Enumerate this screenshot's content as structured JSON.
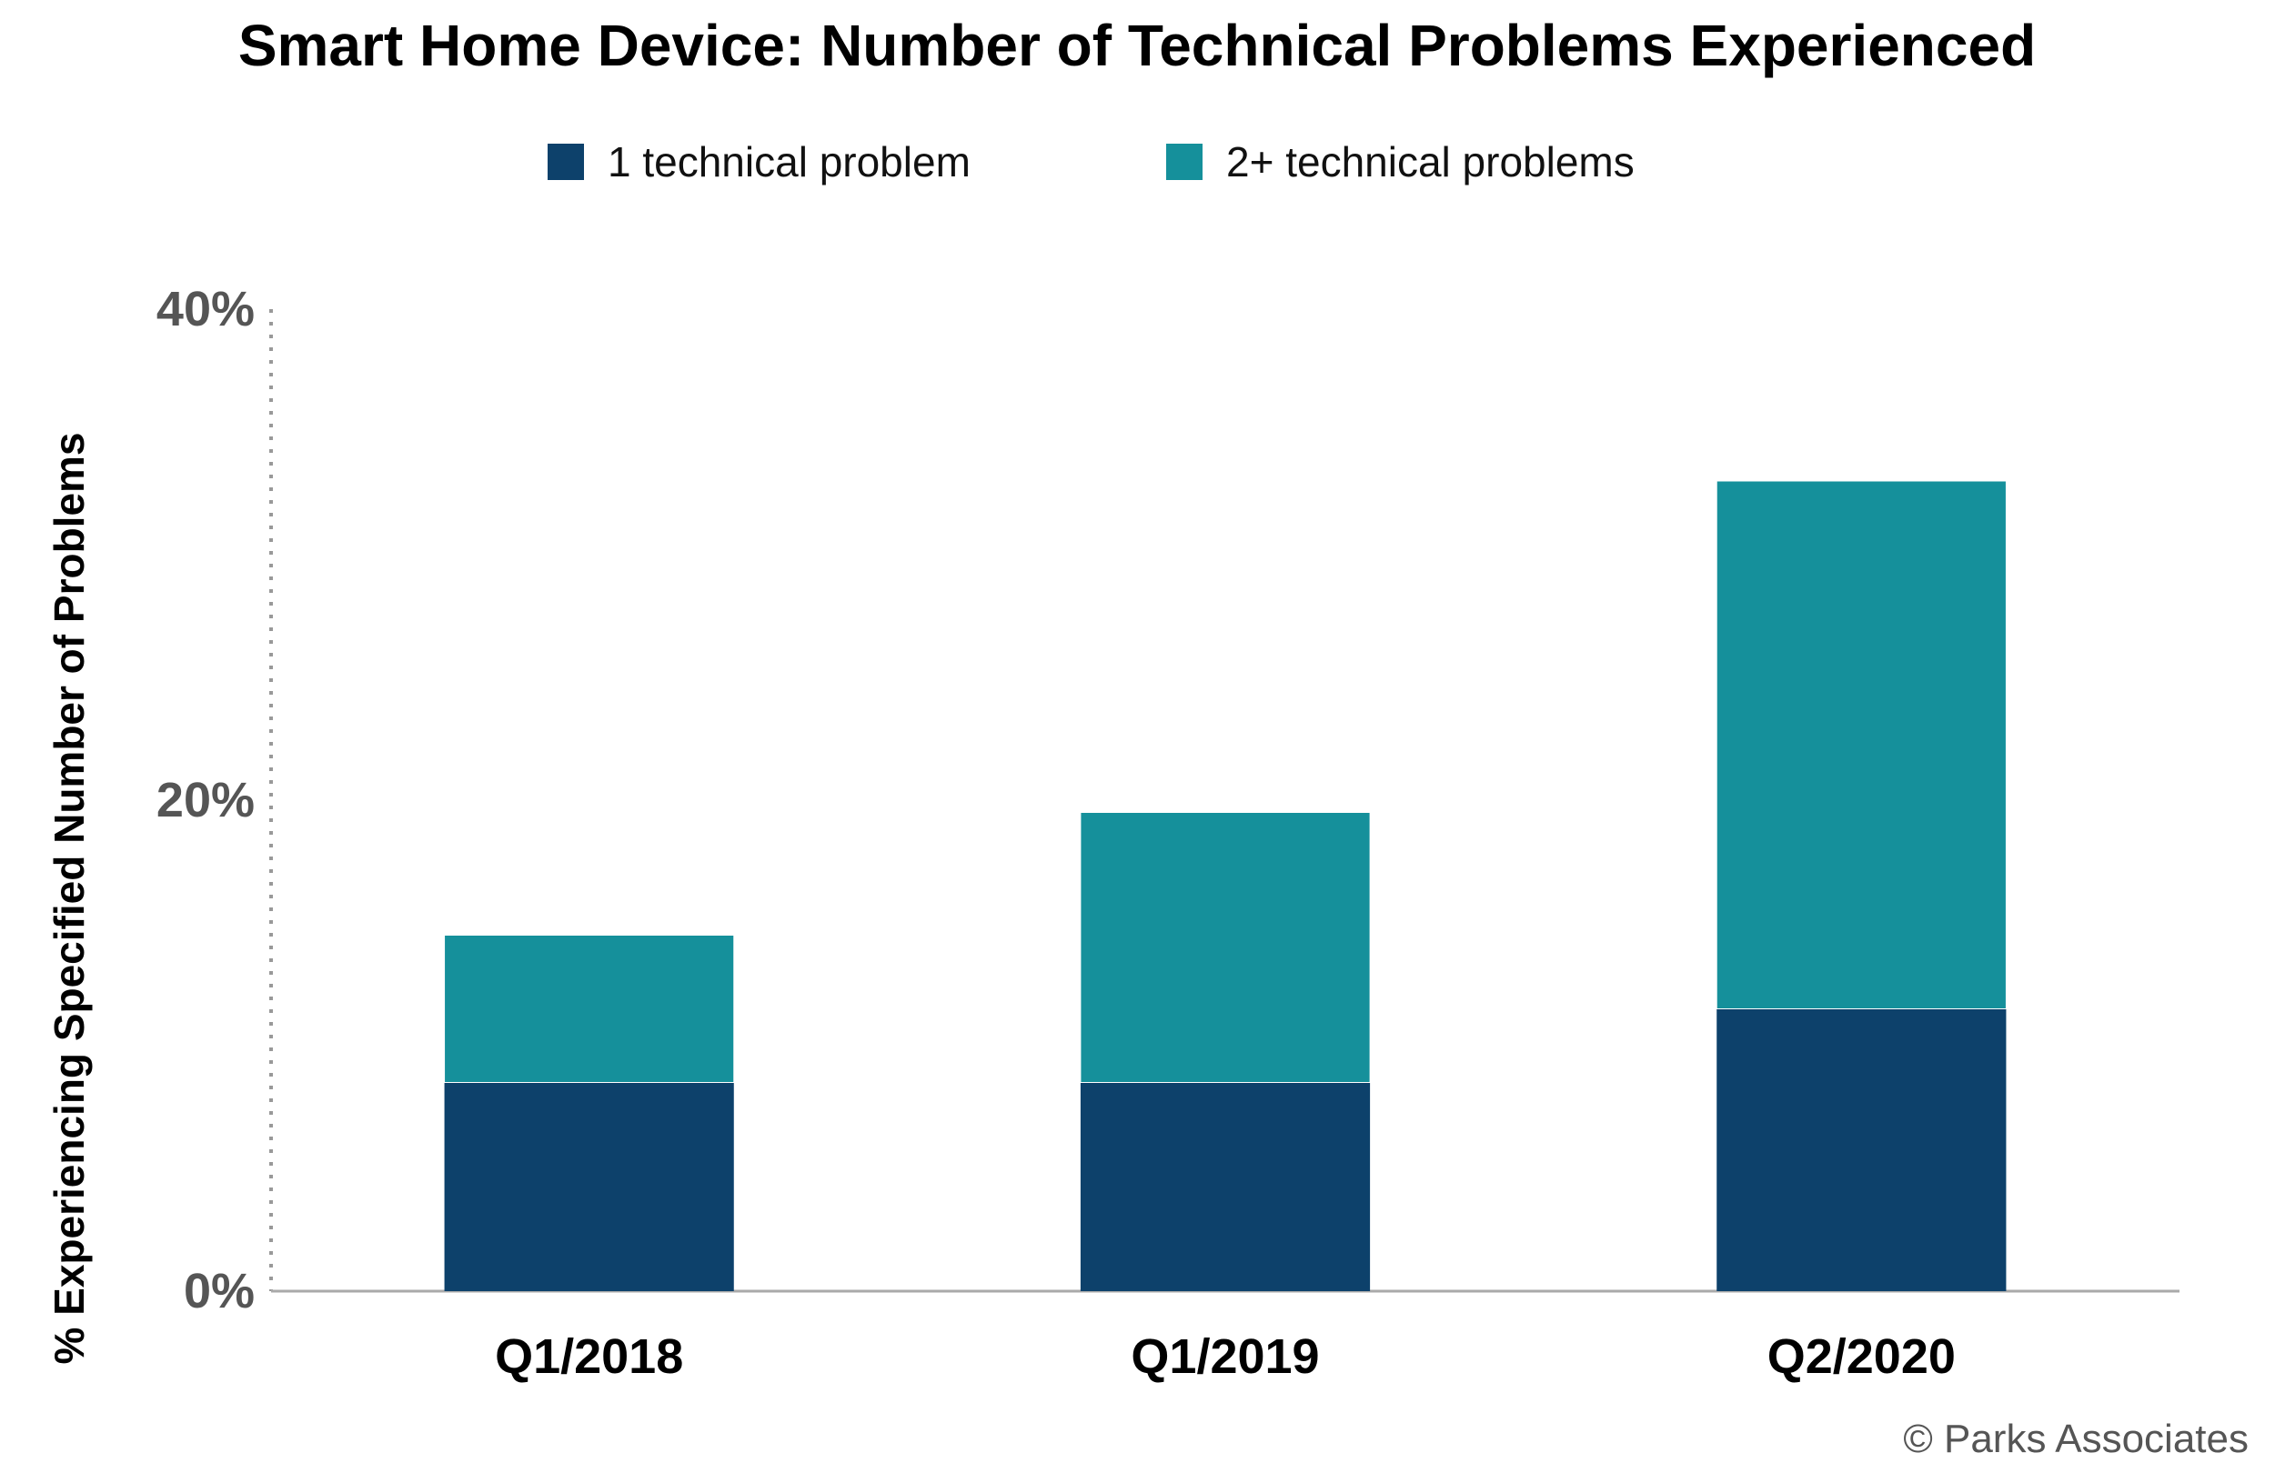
{
  "chart_data": {
    "type": "bar",
    "stacked": true,
    "title": "Smart Home Device: Number of Technical Problems Experienced",
    "xlabel": "",
    "ylabel": "% Experiencing Specified Number of Problems",
    "categories": [
      "Q1/2018",
      "Q1/2019",
      "Q2/2020"
    ],
    "series": [
      {
        "name": "1 technical problem",
        "color": "#0d416b",
        "values": [
          8.5,
          8.5,
          11.5
        ]
      },
      {
        "name": "2+ technical problems",
        "color": "#15909b",
        "values": [
          6.0,
          11.0,
          21.5
        ]
      }
    ],
    "ylim": [
      0,
      40
    ],
    "yticks": [
      0,
      20,
      40
    ],
    "ytick_labels": [
      "0%",
      "20%",
      "40%"
    ],
    "legend_position": "top",
    "grid": false,
    "credit": "© Parks Associates"
  }
}
